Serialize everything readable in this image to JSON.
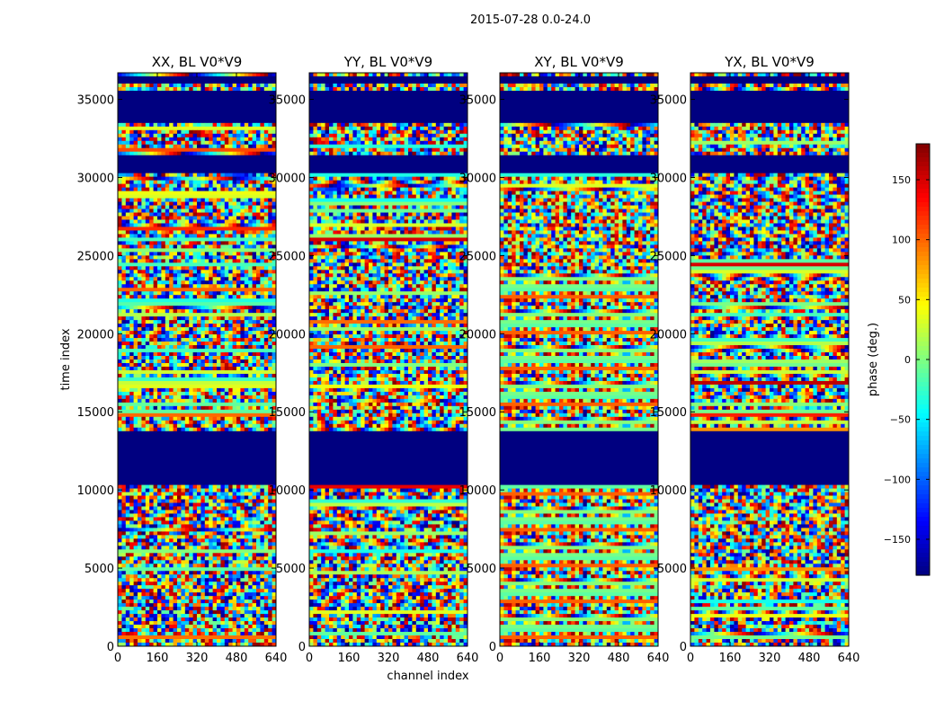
{
  "figure": {
    "suptitle": "2015-07-28 0.0-24.0",
    "xlabel": "channel index",
    "ylabel": "time index"
  },
  "chart_data": {
    "type": "heatmap",
    "title": "2015-07-28 0.0-24.0",
    "xlabel": "channel index",
    "ylabel": "time index",
    "xlim": [
      0,
      640
    ],
    "ylim": [
      0,
      36700
    ],
    "xticks": [
      0,
      160,
      320,
      480,
      640
    ],
    "yticks": [
      0,
      5000,
      10000,
      15000,
      20000,
      25000,
      30000,
      35000
    ],
    "colorbar": {
      "label": "phase (deg.)",
      "range": [
        -180,
        180
      ],
      "ticks": [
        150,
        100,
        50,
        0,
        -50,
        -100,
        -150
      ],
      "tick_labels": [
        "150",
        "100",
        "50",
        "0",
        "−50",
        "−100",
        "−150"
      ],
      "colormap": "jet"
    },
    "panels": [
      {
        "title": "XX, BL V0*V9"
      },
      {
        "title": "YY, BL V0*V9"
      },
      {
        "title": "XY, BL V0*V9"
      },
      {
        "title": "YX, BL V0*V9"
      }
    ],
    "constant_phase_bands": [
      {
        "from": 10300,
        "to": 13700,
        "phase": -180
      },
      {
        "from": 30300,
        "to": 31500,
        "phase": -180
      },
      {
        "from": 33600,
        "to": 35500,
        "phase": -180
      },
      {
        "from": 36000,
        "to": 36500,
        "phase": -180
      }
    ]
  }
}
